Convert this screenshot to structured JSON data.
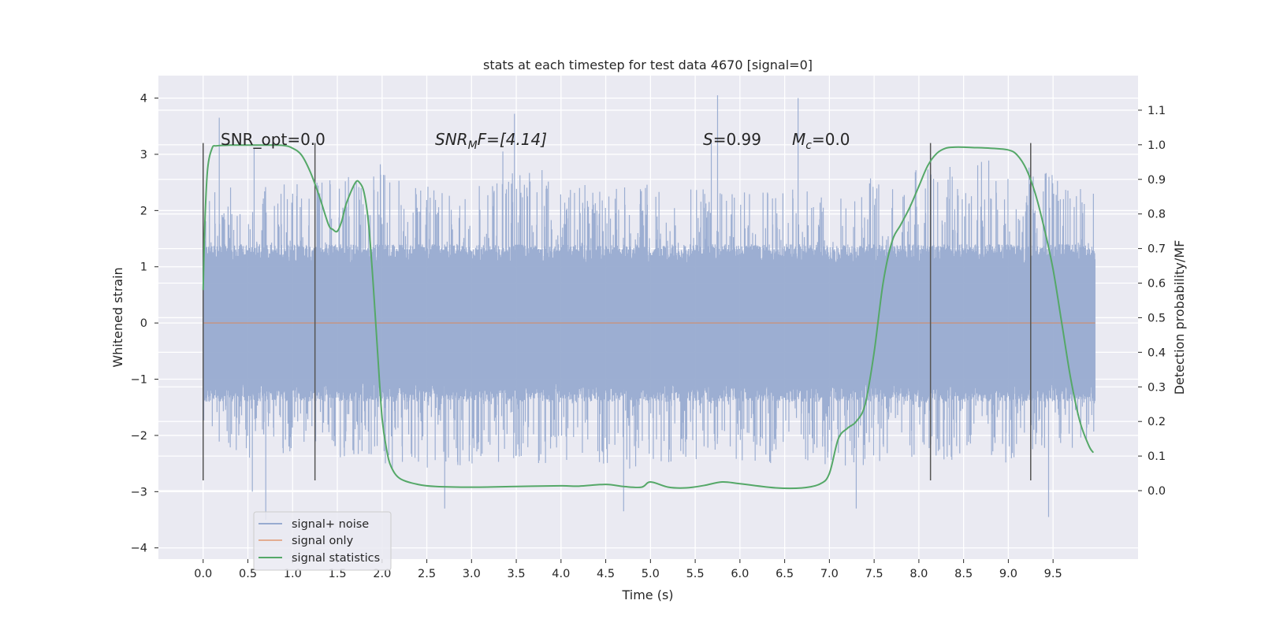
{
  "chart_data": {
    "type": "line",
    "title": "stats at each timestep for test data 4670 [signal=0]",
    "xlabel": "Time (s)",
    "ylabel": "Whitened strain",
    "ylabel_right": "Detection probability/MF",
    "xlim": [
      -0.5,
      10.45
    ],
    "ylim": [
      -4.2,
      4.4
    ],
    "ylim_right": [
      -0.198,
      1.2
    ],
    "x_ticks": [
      "0.0",
      "0.5",
      "1.0",
      "1.5",
      "2.0",
      "2.5",
      "3.0",
      "3.5",
      "4.0",
      "4.5",
      "5.0",
      "5.5",
      "6.0",
      "6.5",
      "7.0",
      "7.5",
      "8.0",
      "8.5",
      "9.0",
      "9.5"
    ],
    "y_ticks": [
      "−4",
      "−3",
      "−2",
      "−1",
      "0",
      "1",
      "2",
      "3",
      "4"
    ],
    "y_ticks_right": [
      "0.0",
      "0.1",
      "0.2",
      "0.3",
      "0.4",
      "0.5",
      "0.6",
      "0.7",
      "0.8",
      "0.9",
      "1.0",
      "1.1"
    ],
    "grid": true,
    "legend_position": "lower-left",
    "annotations": [
      "SNR_opt=0.0",
      "SNR",
      "M",
      "F=[4.14]",
      "S",
      "=0.99",
      "M",
      "c",
      "=0.0"
    ],
    "vertical_markers_x": [
      0.0,
      1.25,
      8.13,
      9.25
    ],
    "vertical_marker_range": [
      -2.8,
      3.2
    ],
    "colors": {
      "background": "#eaeaf2",
      "noise": "#98abd0",
      "signal": "#dd8452",
      "statistics": "#55a868",
      "marker": "#555555"
    },
    "series": [
      {
        "name": "signal+ noise",
        "axis": "left",
        "x_range": [
          0.0,
          9.97
        ],
        "typical_band": [
          -1.4,
          1.4
        ],
        "envelope_max": [
          2.4,
          2.5,
          2.5,
          2.6,
          3.0,
          2.3,
          2.6,
          2.8,
          2.5,
          2.6,
          2.4,
          2.4,
          2.4,
          2.5,
          2.6,
          2.7,
          2.9,
          2.9,
          2.7,
          2.4
        ],
        "envelope_min": [
          -2.0,
          -2.4,
          -2.3,
          -2.4,
          -2.6,
          -2.6,
          -2.5,
          -2.6,
          -2.4,
          -2.6,
          -2.5,
          -2.4,
          -2.5,
          -2.5,
          -2.6,
          -2.4,
          -2.5,
          -2.5,
          -2.4,
          -2.3
        ],
        "spikes": [
          [
            0.18,
            3.65
          ],
          [
            0.57,
            3.1
          ],
          [
            3.35,
            3.05
          ],
          [
            3.48,
            3.72
          ],
          [
            5.68,
            3.2
          ],
          [
            5.75,
            4.05
          ],
          [
            6.65,
            4.0
          ],
          [
            0.55,
            -3.0
          ],
          [
            0.7,
            -3.5
          ],
          [
            2.7,
            -3.3
          ],
          [
            4.7,
            -3.35
          ],
          [
            7.3,
            -3.3
          ],
          [
            9.45,
            -3.45
          ]
        ]
      },
      {
        "name": "signal only",
        "axis": "left",
        "x": [
          0.0,
          9.97
        ],
        "y": [
          0.0,
          0.0
        ]
      },
      {
        "name": "signal statistics",
        "axis": "right",
        "x": [
          0.0,
          0.02,
          0.05,
          0.1,
          0.15,
          0.3,
          0.5,
          0.7,
          0.9,
          1.0,
          1.1,
          1.2,
          1.3,
          1.4,
          1.45,
          1.5,
          1.55,
          1.6,
          1.7,
          1.75,
          1.8,
          1.85,
          1.9,
          1.95,
          2.0,
          2.05,
          2.1,
          2.2,
          2.4,
          2.6,
          3.0,
          3.5,
          4.0,
          4.2,
          4.5,
          4.7,
          4.9,
          5.0,
          5.2,
          5.4,
          5.6,
          5.8,
          6.0,
          6.4,
          6.7,
          6.9,
          7.0,
          7.1,
          7.2,
          7.3,
          7.4,
          7.5,
          7.6,
          7.7,
          7.8,
          7.9,
          8.0,
          8.1,
          8.2,
          8.3,
          8.4,
          8.5,
          8.6,
          8.8,
          9.0,
          9.1,
          9.2,
          9.3,
          9.4,
          9.5,
          9.6,
          9.7,
          9.8,
          9.9,
          9.95
        ],
        "y": [
          0.58,
          0.78,
          0.93,
          0.99,
          0.997,
          0.999,
          0.999,
          0.999,
          0.998,
          0.99,
          0.97,
          0.92,
          0.85,
          0.77,
          0.755,
          0.75,
          0.78,
          0.83,
          0.89,
          0.89,
          0.86,
          0.77,
          0.6,
          0.4,
          0.21,
          0.12,
          0.07,
          0.035,
          0.018,
          0.012,
          0.01,
          0.012,
          0.014,
          0.013,
          0.018,
          0.012,
          0.01,
          0.025,
          0.01,
          0.008,
          0.015,
          0.025,
          0.02,
          0.008,
          0.008,
          0.02,
          0.05,
          0.15,
          0.18,
          0.2,
          0.25,
          0.4,
          0.6,
          0.72,
          0.77,
          0.82,
          0.88,
          0.94,
          0.975,
          0.99,
          0.993,
          0.993,
          0.992,
          0.99,
          0.985,
          0.97,
          0.93,
          0.86,
          0.76,
          0.64,
          0.48,
          0.32,
          0.2,
          0.13,
          0.11
        ]
      }
    ]
  }
}
